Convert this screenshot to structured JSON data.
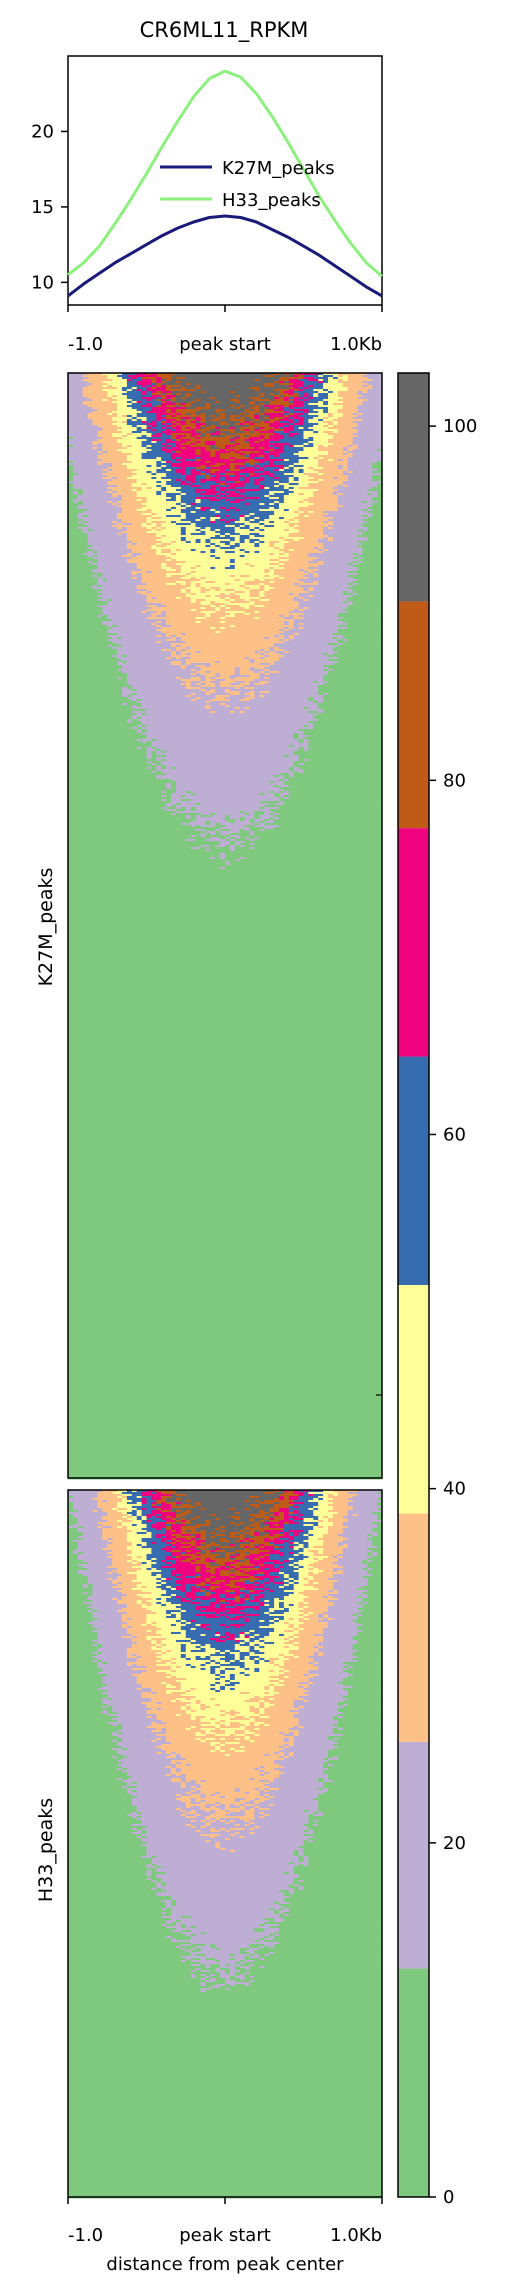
{
  "chart_data": [
    {
      "type": "line",
      "title": "CR6ML11_RPKM",
      "xlabel": "",
      "ylabel": "",
      "x_ticks": [
        "-1.0",
        "peak start",
        "1.0Kb"
      ],
      "y_ticks": [
        10,
        15,
        20
      ],
      "ylim": [
        8.5,
        25
      ],
      "x": [
        -1000,
        -900,
        -800,
        -700,
        -600,
        -500,
        -400,
        -300,
        -200,
        -100,
        0,
        100,
        200,
        300,
        400,
        500,
        600,
        700,
        800,
        900,
        1000
      ],
      "series": [
        {
          "name": "K27M_peaks",
          "color": "#1a1a7a",
          "values": [
            9.1,
            9.9,
            10.6,
            11.3,
            11.9,
            12.5,
            13.1,
            13.6,
            14.0,
            14.3,
            14.4,
            14.3,
            14.0,
            13.5,
            13.0,
            12.4,
            11.8,
            11.1,
            10.4,
            9.7,
            9.1
          ]
        },
        {
          "name": "H33_peaks",
          "color": "#8cf07d",
          "values": [
            10.5,
            11.3,
            12.4,
            13.9,
            15.5,
            17.2,
            19.0,
            20.7,
            22.3,
            23.5,
            24.0,
            23.6,
            22.5,
            21.0,
            19.3,
            17.5,
            15.7,
            14.1,
            12.6,
            11.3,
            10.4
          ]
        }
      ],
      "legend_position": "center-right",
      "grid": false
    },
    {
      "type": "heatmap",
      "rows_label": "K27M_peaks",
      "xlabel": "",
      "x_ticks": [
        "-1.0",
        "peak start",
        "1.0Kb"
      ],
      "description_of_profile": "Values peak at the center of each region and decay toward both edges; top rows have highest signal"
    },
    {
      "type": "heatmap",
      "rows_label": "H33_peaks",
      "xlabel": "distance from peak center",
      "x_ticks": [
        "-1.0",
        "peak start",
        "1.0Kb"
      ]
    },
    {
      "type": "colorbar",
      "ticks": [
        0,
        20,
        40,
        60,
        80,
        100
      ],
      "range": [
        0,
        103
      ],
      "bins": [
        {
          "from": 0,
          "to": 12.9,
          "color": "#7fc97f"
        },
        {
          "from": 12.9,
          "to": 25.7,
          "color": "#beaed4"
        },
        {
          "from": 25.7,
          "to": 38.6,
          "color": "#fdc086"
        },
        {
          "from": 38.6,
          "to": 51.5,
          "color": "#ffff99"
        },
        {
          "from": 51.5,
          "to": 64.4,
          "color": "#386cb0"
        },
        {
          "from": 64.4,
          "to": 77.3,
          "color": "#f0027f"
        },
        {
          "from": 77.3,
          "to": 90.1,
          "color": "#bf5b17"
        },
        {
          "from": 90.1,
          "to": 103,
          "color": "#666666"
        }
      ]
    }
  ]
}
